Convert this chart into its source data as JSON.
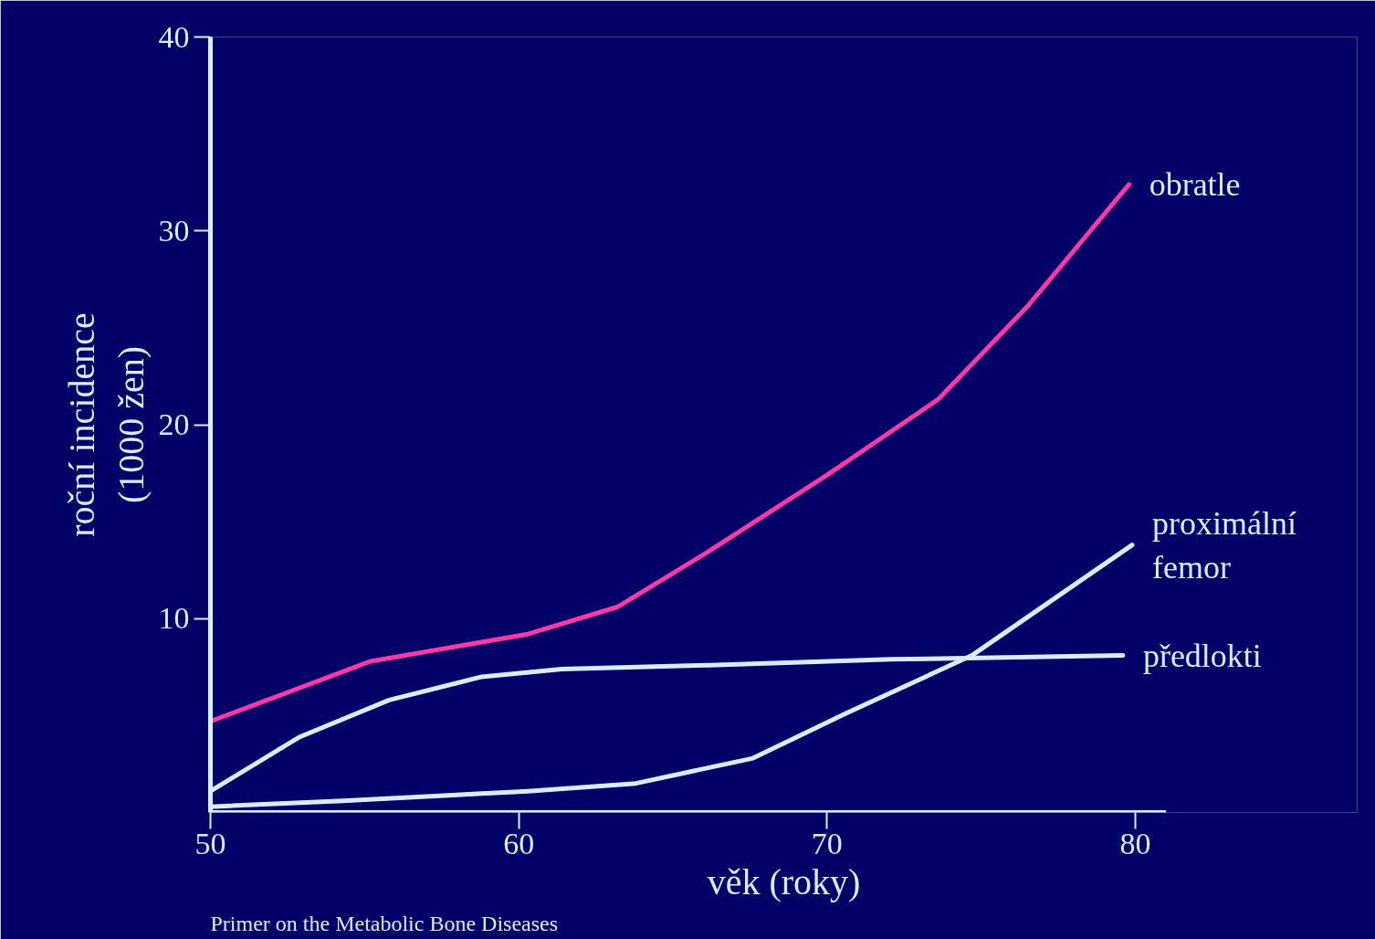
{
  "chart_data": {
    "type": "line",
    "xlabel": "věk (roky)",
    "ylabel": "roční incidence\n(1000 žen)",
    "xlim": [
      50,
      81
    ],
    "ylim": [
      0,
      40
    ],
    "xticks": [
      50,
      60,
      70,
      80
    ],
    "yticks": [
      10,
      20,
      30,
      40
    ],
    "grid": false,
    "marker": "none",
    "line_style": "solid",
    "annotations": [
      "Primer on the Metabolic Bone Diseases"
    ],
    "series": [
      {
        "name": "obratle",
        "color": "#ff3aa8",
        "x": [
          50,
          55.2,
          60.3,
          63.2,
          66.2,
          70,
          73.6,
          76.5,
          79.8
        ],
        "values": [
          4.7,
          7.8,
          9.2,
          10.6,
          13.5,
          17.4,
          21.3,
          26.1,
          32.4
        ]
      },
      {
        "name": "proximální femor",
        "color": "#d8ecff",
        "x": [
          50,
          54.3,
          60.3,
          63.8,
          67.6,
          70.6,
          74.7,
          79.9
        ],
        "values": [
          0.3,
          0.6,
          1.1,
          1.5,
          2.8,
          5.1,
          8.1,
          13.8
        ]
      },
      {
        "name": "předlokti",
        "color": "#d8ecff",
        "x": [
          50,
          52.9,
          55.8,
          58.8,
          61.4,
          66.2,
          72.1,
          79.6
        ],
        "values": [
          1.1,
          3.9,
          5.8,
          7.0,
          7.4,
          7.6,
          7.9,
          8.1
        ]
      }
    ]
  }
}
